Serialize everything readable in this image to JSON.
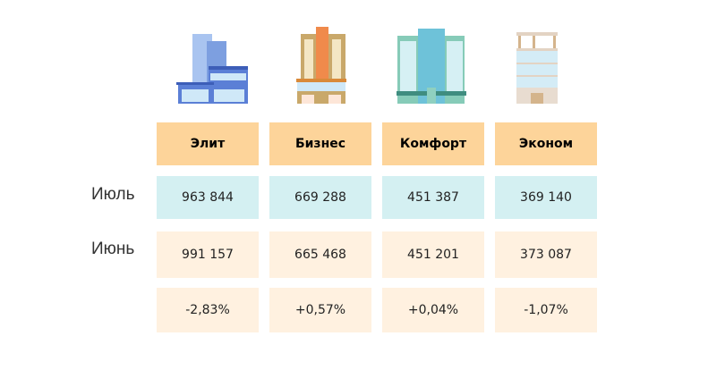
{
  "columns": [
    {
      "label": "Элит",
      "icon": "building-elite-icon",
      "july": "963 844",
      "june": "991 157",
      "change": "-2,83%"
    },
    {
      "label": "Бизнес",
      "icon": "building-business-icon",
      "july": "669 288",
      "june": "665 468",
      "change": "+0,57%"
    },
    {
      "label": "Комфорт",
      "icon": "building-comfort-icon",
      "july": "451 387",
      "june": "451 201",
      "change": "+0,04%"
    },
    {
      "label": "Эконом",
      "icon": "building-economy-icon",
      "july": "369 140",
      "june": "373 087",
      "change": "-1,07%"
    }
  ],
  "rows": {
    "july": "Июль",
    "june": "Июнь"
  },
  "colors": {
    "header": "#fdd49a",
    "july_row": "#d4f0f2",
    "june_row": "#fff1e0",
    "change_row": "#fff1e0"
  }
}
